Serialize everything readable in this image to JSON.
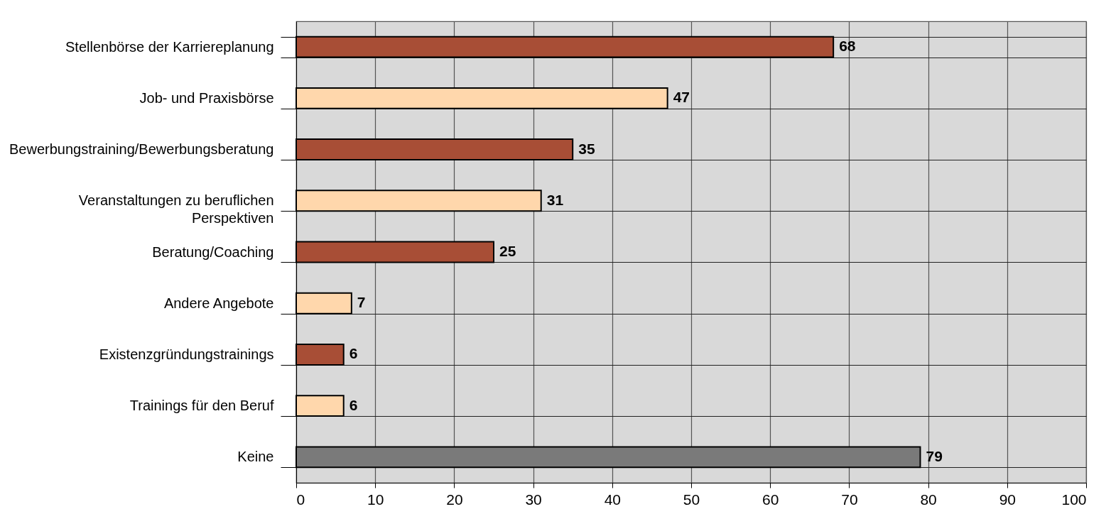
{
  "chart_data": {
    "type": "bar",
    "orientation": "horizontal",
    "categories": [
      "Stellenbörse der Karriereplanung",
      "Job- und Praxisbörse",
      "Bewerbungstraining/Bewerbungsberatung",
      "Veranstaltungen zu beruflichen\nPerspektiven",
      "Beratung/Coaching",
      "Andere Angebote",
      "Existenzgründungstrainings",
      "Trainings für den Beruf",
      "Keine"
    ],
    "values": [
      68,
      47,
      35,
      31,
      25,
      7,
      6,
      6,
      79
    ],
    "colors": [
      "#a84e36",
      "#ffd7ac",
      "#a84e36",
      "#ffd7ac",
      "#a84e36",
      "#ffd7ac",
      "#a84e36",
      "#ffd7ac",
      "#7a7a7a"
    ],
    "xlim": [
      0,
      100
    ],
    "xticks": [
      0,
      10,
      20,
      30,
      40,
      50,
      60,
      70,
      80,
      90,
      100
    ],
    "grid": true,
    "data_labels": true
  }
}
